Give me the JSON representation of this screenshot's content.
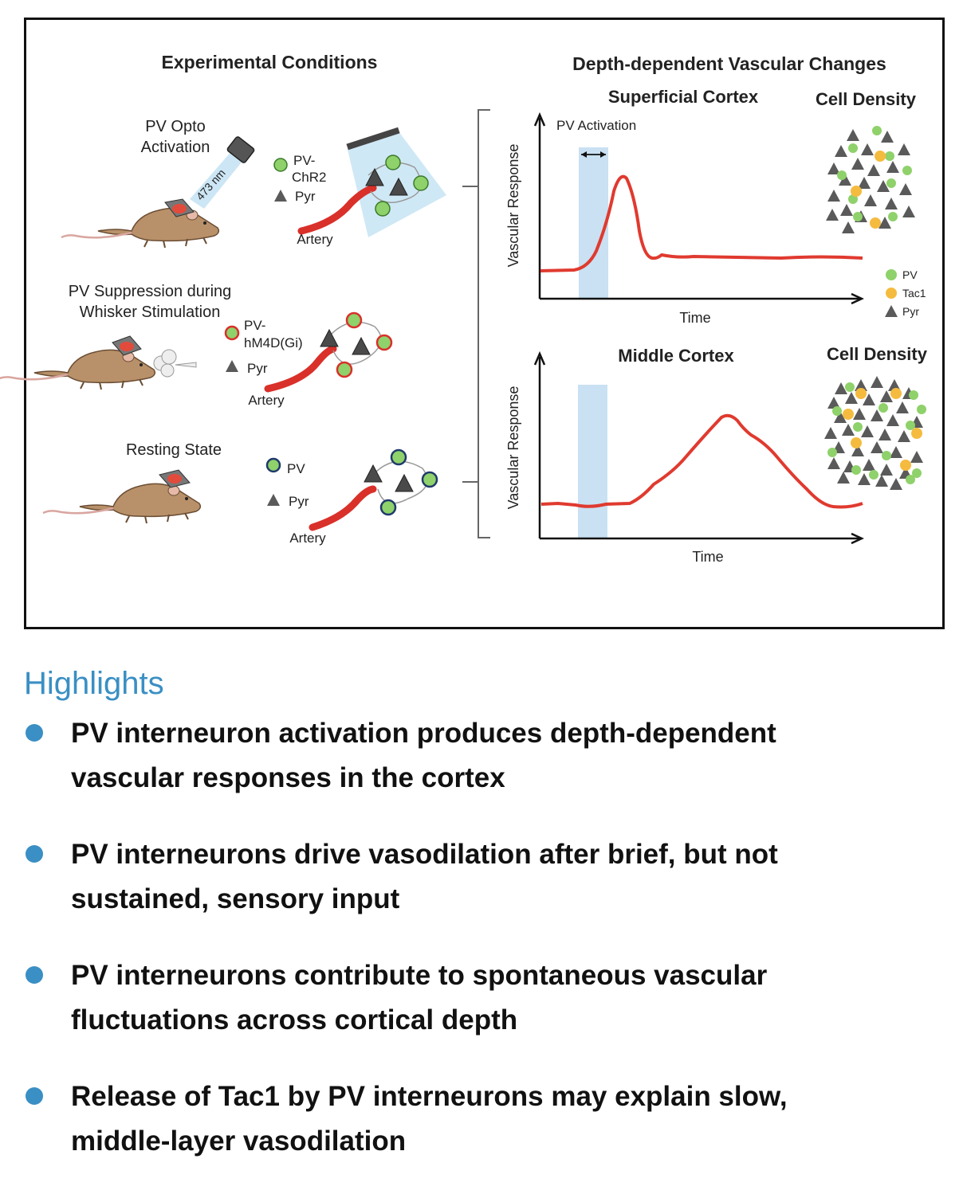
{
  "figure": {
    "left_header": "Experimental Conditions",
    "right_header": "Depth-dependent Vascular Changes",
    "conditions": {
      "opto_title_line1": "PV Opto",
      "opto_title_line2": "Activation",
      "wavelength": "473 nm",
      "opto_legend_pv_line1": "PV-",
      "opto_legend_pv_line2": "ChR2",
      "opto_legend_pyr": "Pyr",
      "opto_artery": "Artery",
      "suppression_title_line1": "PV Suppression during",
      "suppression_title_line2": "Whisker Stimulation",
      "supp_legend_pv_line1": "PV-",
      "supp_legend_pv_line2": "hM4D(Gi)",
      "supp_legend_pyr": "Pyr",
      "supp_artery": "Artery",
      "resting_title": "Resting State",
      "rest_legend_pv": "PV",
      "rest_legend_pyr": "Pyr",
      "rest_artery": "Artery"
    },
    "superficial": {
      "title": "Superficial Cortex",
      "density_title": "Cell Density",
      "pv_activation": "PV Activation",
      "ylabel": "Vascular Response",
      "xlabel": "Time"
    },
    "middle": {
      "title": "Middle Cortex",
      "density_title": "Cell Density",
      "ylabel": "Vascular Response",
      "xlabel": "Time"
    },
    "density_legend": {
      "pv": "PV",
      "tac1": "Tac1",
      "pyr": "Pyr"
    },
    "colors": {
      "pv_green": "#8fd16a",
      "tac1_orange": "#f5bb3f",
      "pyr_gray": "#5a5a5a",
      "trace_red": "#e03a2f",
      "stim_blue": "#c9e1f2",
      "highlight_blue": "#3a8fc4"
    }
  },
  "highlights": {
    "title": "Highlights",
    "items": [
      {
        "line1": "PV interneuron activation produces depth-dependent",
        "line2": "vascular responses in the cortex"
      },
      {
        "line1": "PV interneurons drive vasodilation after brief, but not",
        "line2": "sustained, sensory input"
      },
      {
        "line1": "PV interneurons contribute to spontaneous vascular",
        "line2": "fluctuations across cortical depth"
      },
      {
        "line1": "Release of Tac1 by PV interneurons may explain slow,",
        "line2": "middle-layer vasodilation"
      }
    ]
  }
}
